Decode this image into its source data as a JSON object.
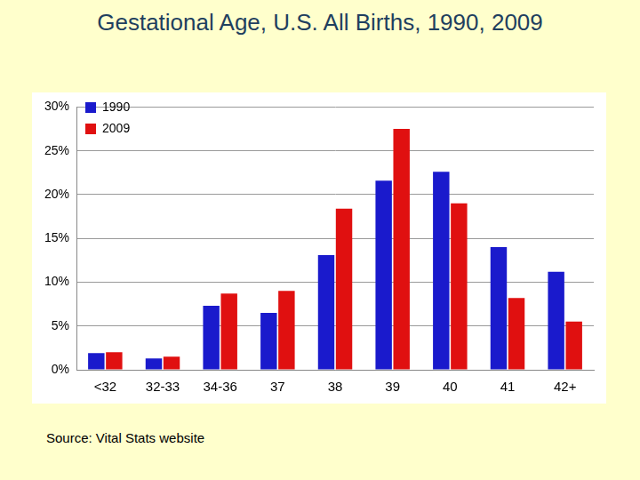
{
  "chart_data": {
    "type": "bar",
    "title": "Gestational Age, U.S. All Births, 1990, 2009",
    "annotations": [
      "Source: Vital Stats website"
    ],
    "categories": [
      "<32",
      "32-33",
      "34-36",
      "37",
      "38",
      "39",
      "40",
      "41",
      "42+"
    ],
    "series": [
      {
        "name": "1990",
        "color": "#1a1acc",
        "values": [
          1.9,
          1.3,
          7.3,
          6.5,
          13.1,
          21.6,
          22.6,
          14.0,
          11.2
        ]
      },
      {
        "name": "2009",
        "color": "#e01010",
        "values": [
          2.0,
          1.5,
          8.7,
          9.0,
          18.4,
          27.5,
          19.0,
          8.2,
          5.5
        ]
      }
    ],
    "ylim": [
      0,
      30
    ],
    "yticks": [
      {
        "value": 0,
        "label": "0%"
      },
      {
        "value": 5,
        "label": "5%"
      },
      {
        "value": 10,
        "label": "10%"
      },
      {
        "value": 15,
        "label": "15%"
      },
      {
        "value": 20,
        "label": "20%"
      },
      {
        "value": 25,
        "label": "25%"
      },
      {
        "value": 30,
        "label": "30%"
      }
    ],
    "grid": true,
    "legend": "upper left"
  }
}
